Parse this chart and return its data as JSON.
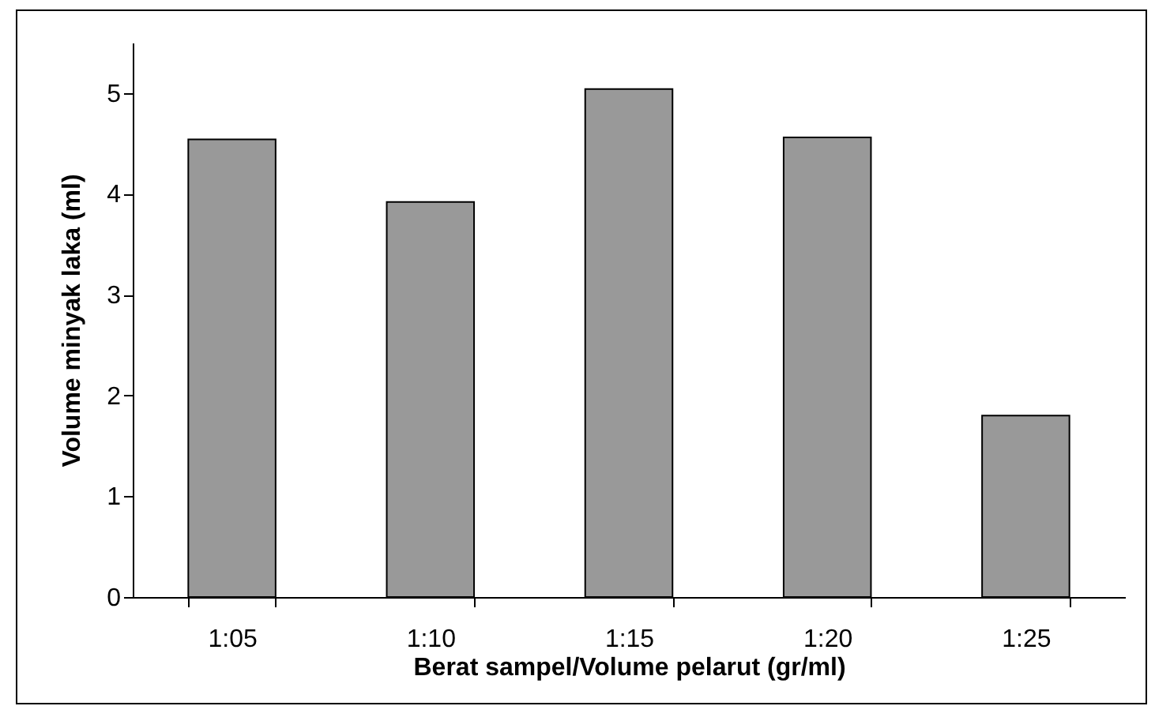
{
  "chart_data": {
    "type": "bar",
    "xlabel": "Berat sampel/Volume pelarut (gr/ml)",
    "ylabel": "Volume minyak laka (ml)",
    "categories": [
      "1:05",
      "1:10",
      "1:15",
      "1:20",
      "1:25"
    ],
    "values": [
      4.54,
      3.92,
      5.04,
      4.56,
      1.8
    ],
    "color": "#999999",
    "ylim": [
      0,
      5.5
    ],
    "yticks": [
      0,
      1,
      2,
      3,
      4,
      5
    ],
    "grid": false
  }
}
